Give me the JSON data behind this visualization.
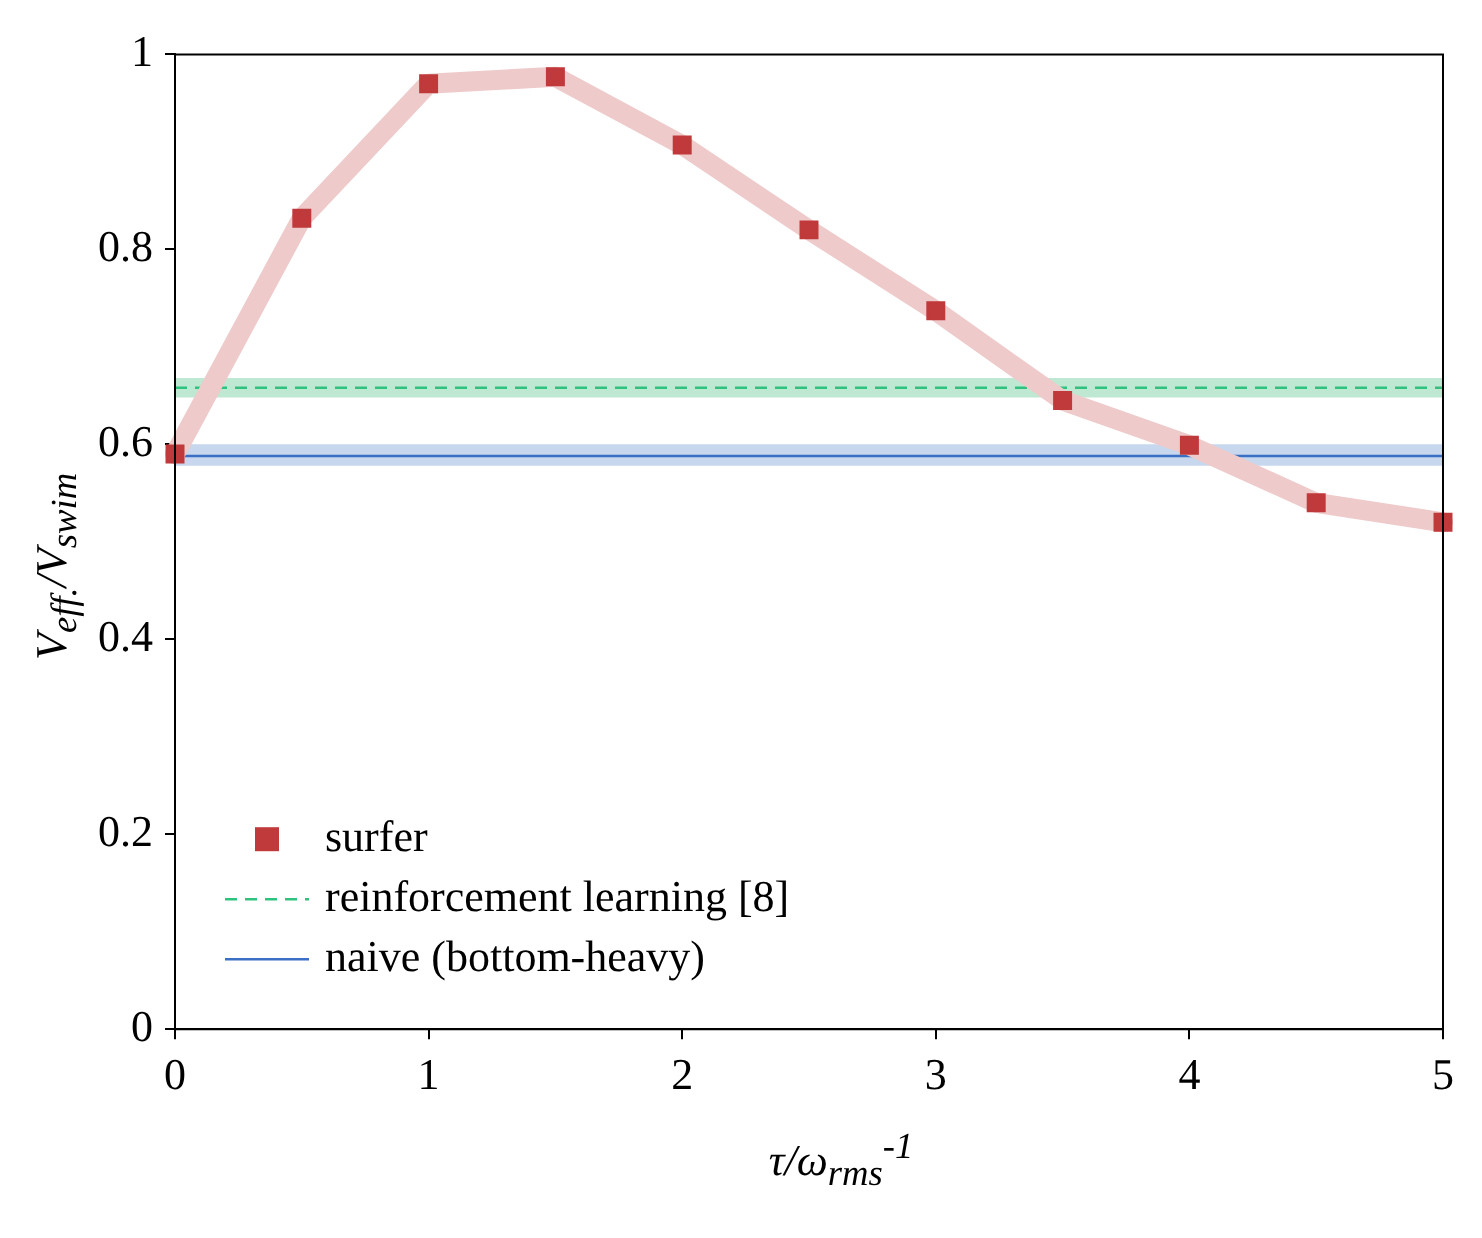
{
  "chart_data": {
    "type": "line",
    "xlabel": "τ/ω$_{rms}$$^{-1}$",
    "ylabel": "V$_{eff.}$/V$_{swim}$",
    "x": [
      0,
      0.5,
      1,
      1.5,
      2,
      2.5,
      3,
      3.5,
      4,
      4.5,
      5
    ],
    "series": [
      {
        "type": "line",
        "color": "#eecaca",
        "values": [
          0.59,
          0.832,
          0.97,
          0.977,
          0.907,
          0.82,
          0.737,
          0.645,
          0.599,
          0.54,
          0.52
        ]
      },
      {
        "type": "scatter",
        "name": "surfer",
        "color": "#c0393b",
        "marker": "square",
        "values": [
          0.59,
          0.832,
          0.97,
          0.977,
          0.907,
          0.82,
          0.737,
          0.645,
          0.599,
          0.54,
          0.52
        ]
      }
    ],
    "ref_lines": [
      {
        "axis": "y",
        "value": 0.658,
        "label": "reinforcement learning [8]",
        "color": "#2ec27e",
        "line_style": "dashed"
      },
      {
        "axis": "y",
        "value": 0.588,
        "label": "naive (bottom-heavy)",
        "color": "#3a6fc4",
        "line_style": "solid"
      }
    ],
    "bands": [
      {
        "axis": "y",
        "from": 0.648,
        "to": 0.668,
        "color": "#bfe8d2"
      },
      {
        "axis": "y",
        "from": 0.578,
        "to": 0.6,
        "color": "#c6d7ee"
      }
    ],
    "xlim": [
      0,
      5
    ],
    "xticks": [
      0,
      1,
      2,
      3,
      4,
      5
    ],
    "ylim": [
      0,
      1
    ],
    "yticks": [
      0,
      0.2,
      0.4,
      0.6,
      0.8,
      1
    ],
    "grid": false,
    "legend": "bottom left"
  }
}
